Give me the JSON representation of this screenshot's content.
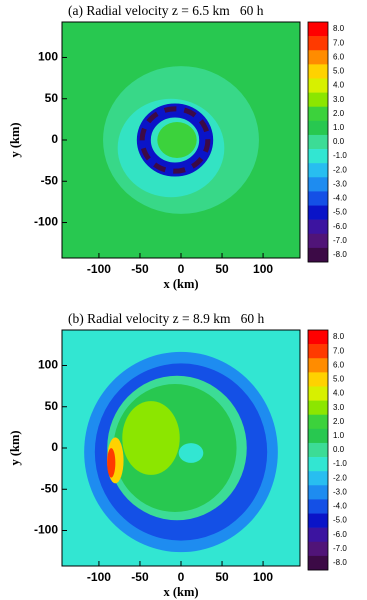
{
  "chart_data": [
    {
      "type": "contour",
      "title": "(a) Radial velocity z = 6.5 km   60 h",
      "xlabel": "x (km)",
      "ylabel": "y (km)",
      "xlim": [
        -145,
        145
      ],
      "ylim": [
        -143,
        143
      ],
      "xticks": [
        -100,
        -50,
        0,
        50,
        100
      ],
      "yticks": [
        -100,
        -50,
        0,
        50,
        100
      ],
      "colorbar": {
        "levels": [
          {
            "value": 8,
            "label": "8.0"
          },
          {
            "value": 7,
            "label": "7.0"
          },
          {
            "value": 6,
            "label": "6.0"
          },
          {
            "value": 5,
            "label": "5.0"
          },
          {
            "value": 4,
            "label": "4.0"
          },
          {
            "value": 3,
            "label": "3.0"
          },
          {
            "value": 2,
            "label": "2.0"
          },
          {
            "value": 1,
            "label": "1.0"
          },
          {
            "value": 0,
            "label": "0.0"
          },
          {
            "value": -1,
            "label": "-1.0"
          },
          {
            "value": -2,
            "label": "-2.0"
          },
          {
            "value": -3,
            "label": "-3.0"
          },
          {
            "value": -4,
            "label": "-4.0"
          },
          {
            "value": -5,
            "label": "-5.0"
          },
          {
            "value": -6,
            "label": "-6.0"
          },
          {
            "value": -7,
            "label": "-7.0"
          },
          {
            "value": -8,
            "label": "-8.0"
          }
        ],
        "colors": [
          "#ff0000",
          "#ff3a00",
          "#ff8c00",
          "#ffd200",
          "#d7f000",
          "#8ce600",
          "#3cd23c",
          "#28c850",
          "#3cdc96",
          "#32e6d2",
          "#28bef0",
          "#1e8cf0",
          "#1450e6",
          "#0a14c8",
          "#3c14a0",
          "#501478",
          "#3c0a46"
        ]
      }
    },
    {
      "type": "contour",
      "title": "(b) Radial velocity z = 8.9 km   60 h",
      "xlabel": "x (km)",
      "ylabel": "y (km)",
      "xlim": [
        -145,
        145
      ],
      "ylim": [
        -143,
        143
      ],
      "xticks": [
        -100,
        -50,
        0,
        50,
        100
      ],
      "yticks": [
        -100,
        -50,
        0,
        50,
        100
      ],
      "colorbar": {
        "levels": [
          {
            "value": 8,
            "label": "8.0"
          },
          {
            "value": 7,
            "label": "7.0"
          },
          {
            "value": 6,
            "label": "6.0"
          },
          {
            "value": 5,
            "label": "5.0"
          },
          {
            "value": 4,
            "label": "4.0"
          },
          {
            "value": 3,
            "label": "3.0"
          },
          {
            "value": 2,
            "label": "2.0"
          },
          {
            "value": 1,
            "label": "1.0"
          },
          {
            "value": 0,
            "label": "0.0"
          },
          {
            "value": -1,
            "label": "-1.0"
          },
          {
            "value": -2,
            "label": "-2.0"
          },
          {
            "value": -3,
            "label": "-3.0"
          },
          {
            "value": -4,
            "label": "-4.0"
          },
          {
            "value": -5,
            "label": "-5.0"
          },
          {
            "value": -6,
            "label": "-6.0"
          },
          {
            "value": -7,
            "label": "-7.0"
          },
          {
            "value": -8,
            "label": "-8.0"
          }
        ],
        "colors": [
          "#ff0000",
          "#ff3a00",
          "#ff8c00",
          "#ffd200",
          "#d7f000",
          "#8ce600",
          "#3cd23c",
          "#28c850",
          "#3cdc96",
          "#32e6d2",
          "#28bef0",
          "#1e8cf0",
          "#1450e6",
          "#0a14c8",
          "#3c14a0",
          "#501478",
          "#3c0a46"
        ]
      }
    }
  ]
}
